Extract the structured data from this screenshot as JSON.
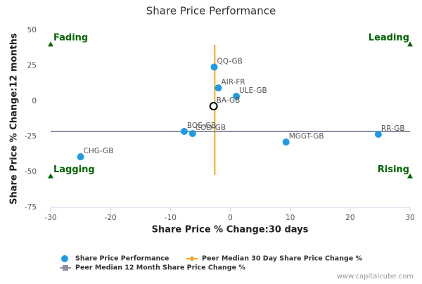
{
  "chart_data": {
    "type": "scatter",
    "title": "Share Price Performance",
    "x_label": "Share Price % Change:30 days",
    "y_label": "Share Price % Change:12 months",
    "xlim": [
      -30,
      30
    ],
    "xticks": [
      -30,
      -20,
      -10,
      0,
      10,
      20,
      30
    ],
    "ylim": [
      -75,
      50
    ],
    "yticks": [
      50,
      25,
      0,
      -25,
      -50,
      -75
    ],
    "grid": false,
    "series": [
      {
        "name": "Share Price Performance",
        "color": "#1f9be3",
        "kind": "points",
        "labels": [
          "QQ-GB",
          "AIR-FR",
          "ULE-GB",
          "BA-GB",
          "BOE-GB",
          "COD-GB",
          "MGGT-GB",
          "RR-GB",
          "CHG-GB"
        ],
        "x": [
          -2.7,
          -2.0,
          1.0,
          -2.8,
          -7.7,
          -6.3,
          9.3,
          24.7,
          -25.0
        ],
        "values": [
          24,
          9.3,
          3.4,
          -3.6,
          -21.4,
          -22.9,
          -28.9,
          -23.4,
          -39.3
        ],
        "marker_styles": [
          "filled",
          "filled",
          "filled",
          "hollow",
          "filled",
          "filled",
          "filled",
          "filled",
          "filled"
        ]
      },
      {
        "name": "Peer Median 30 Day Share Price Change %",
        "color": "#f5a623",
        "kind": "line",
        "legend_marker": "diamond",
        "x": [
          -2.6,
          -2.6
        ],
        "values": [
          39.6,
          -52
        ]
      },
      {
        "name": "Peer Median 12 Month Share Price Change %",
        "color": "#8c8fa3",
        "kind": "line",
        "legend_marker": "square",
        "x": [
          -30,
          30
        ],
        "values": [
          -21.4,
          -21.4
        ]
      }
    ],
    "annotations": [
      {
        "text": "Fading",
        "x": -30,
        "y": 40,
        "align": "left"
      },
      {
        "text": "Leading",
        "x": 30,
        "y": 40,
        "align": "right"
      },
      {
        "text": "Lagging",
        "x": -30,
        "y": -53,
        "align": "left"
      },
      {
        "text": "Rising",
        "x": 30,
        "y": -53,
        "align": "right"
      }
    ],
    "annotation_color": "#006400",
    "source": "www.capitalcube.com"
  }
}
